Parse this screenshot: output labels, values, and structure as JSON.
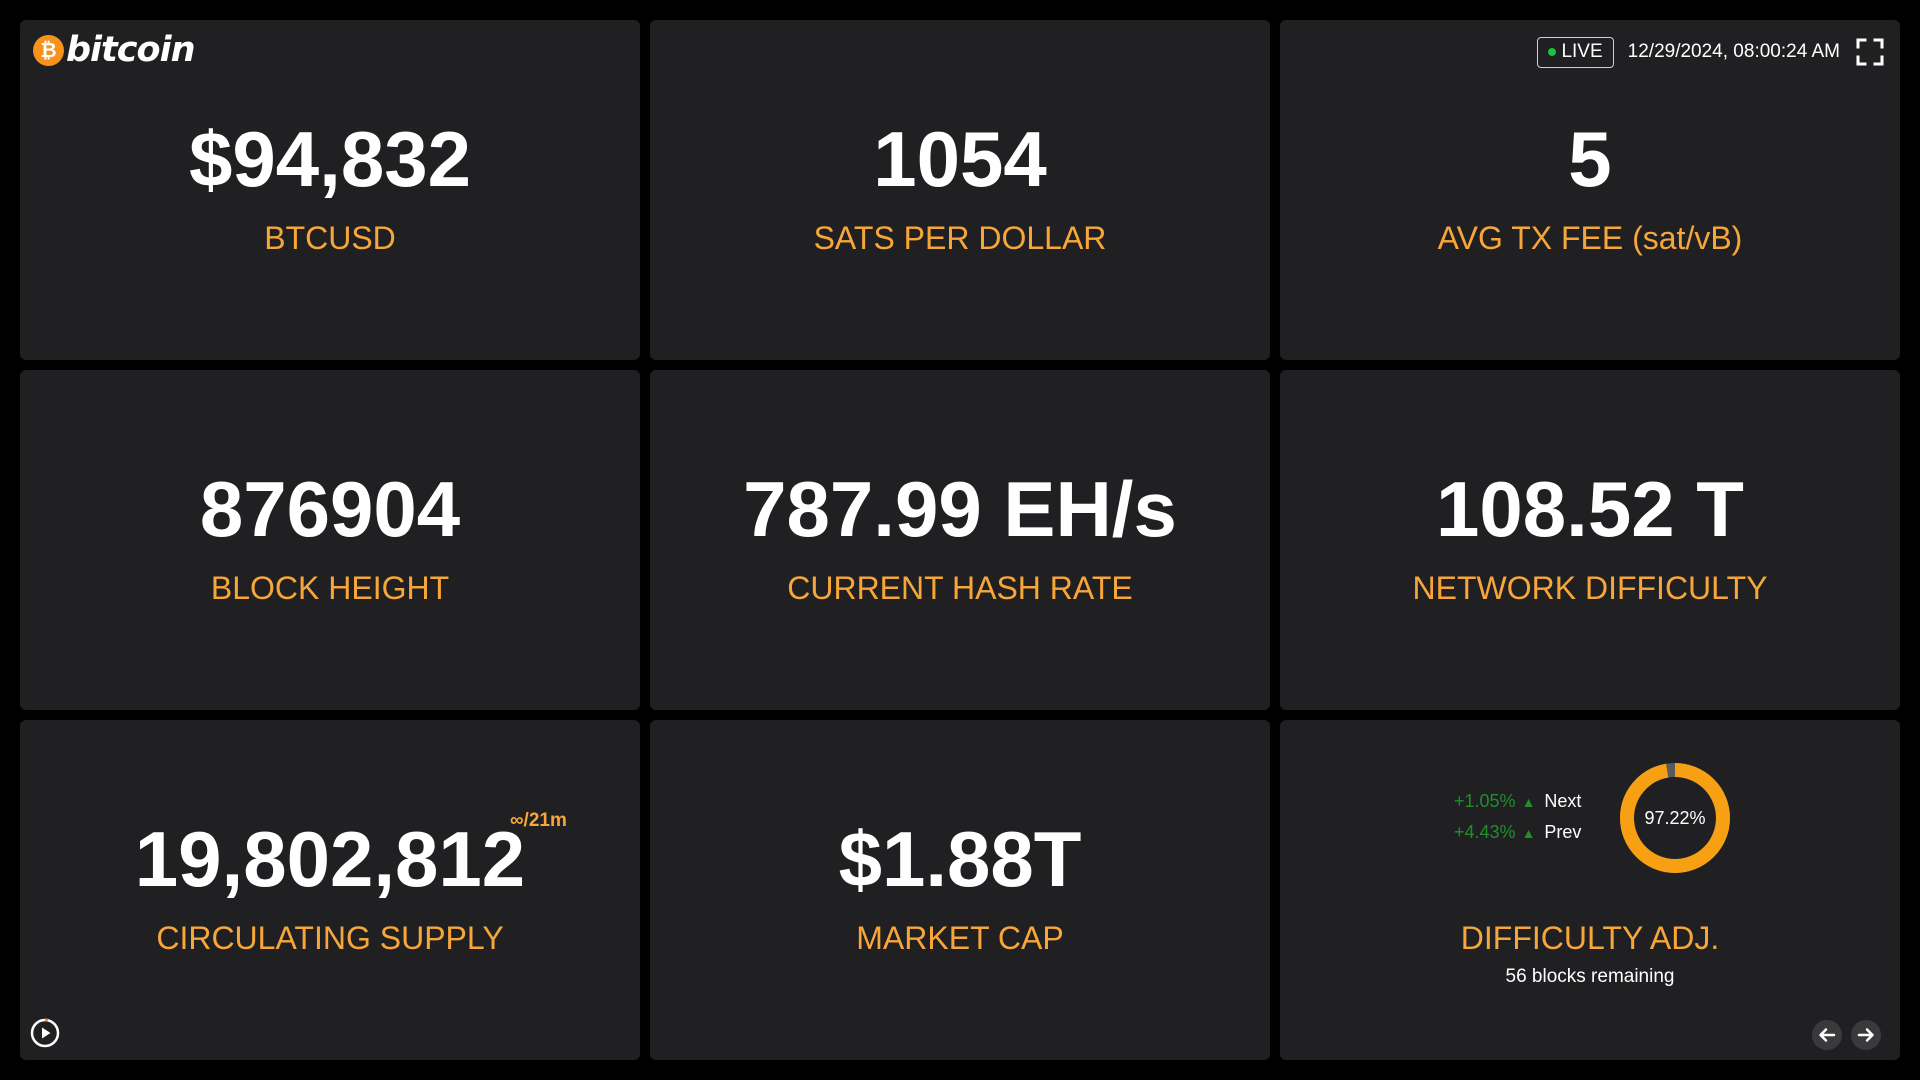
{
  "brand": {
    "coin_symbol": "₿",
    "name": "bitcoin",
    "color": "#f7931a"
  },
  "header": {
    "live_label": "LIVE",
    "datetime": "12/29/2024, 08:00:24 AM",
    "fullscreen_icon": "fullscreen-icon"
  },
  "colors": {
    "background": "#000000",
    "card": "#202022",
    "accent": "#f7a63a",
    "value": "#ffffff",
    "positive": "#1f8f2a",
    "live_dot": "#19c23a"
  },
  "metrics": {
    "price": {
      "value": "$94,832",
      "label": "BTCUSD"
    },
    "sats": {
      "value": "1054",
      "label": "SATS PER DOLLAR"
    },
    "fee": {
      "value": "5",
      "label": "AVG TX FEE (sat/vB)"
    },
    "block": {
      "value": "876904",
      "label": "BLOCK HEIGHT"
    },
    "hashrate": {
      "value": "787.99 EH/s",
      "label": "CURRENT HASH RATE"
    },
    "difficulty": {
      "value": "108.52 T",
      "label": "NETWORK DIFFICULTY"
    },
    "supply": {
      "value": "19,802,812",
      "suffix": "∞/21m",
      "label": "CIRCULATING SUPPLY"
    },
    "marketcap": {
      "value": "$1.88T",
      "label": "MARKET CAP"
    }
  },
  "difficulty_adj": {
    "next": {
      "pct": "+1.05%",
      "arrow": "▲",
      "name": "Next"
    },
    "prev": {
      "pct": "+4.43%",
      "arrow": "▲",
      "name": "Prev"
    },
    "progress_text": "97.22%",
    "progress_fraction": 0.9722,
    "label": "DIFFICULTY ADJ.",
    "remaining": "56 blocks remaining"
  },
  "controls": {
    "play_icon": "play-icon",
    "prev_icon": "arrow-left-icon",
    "next_icon": "arrow-right-icon"
  }
}
